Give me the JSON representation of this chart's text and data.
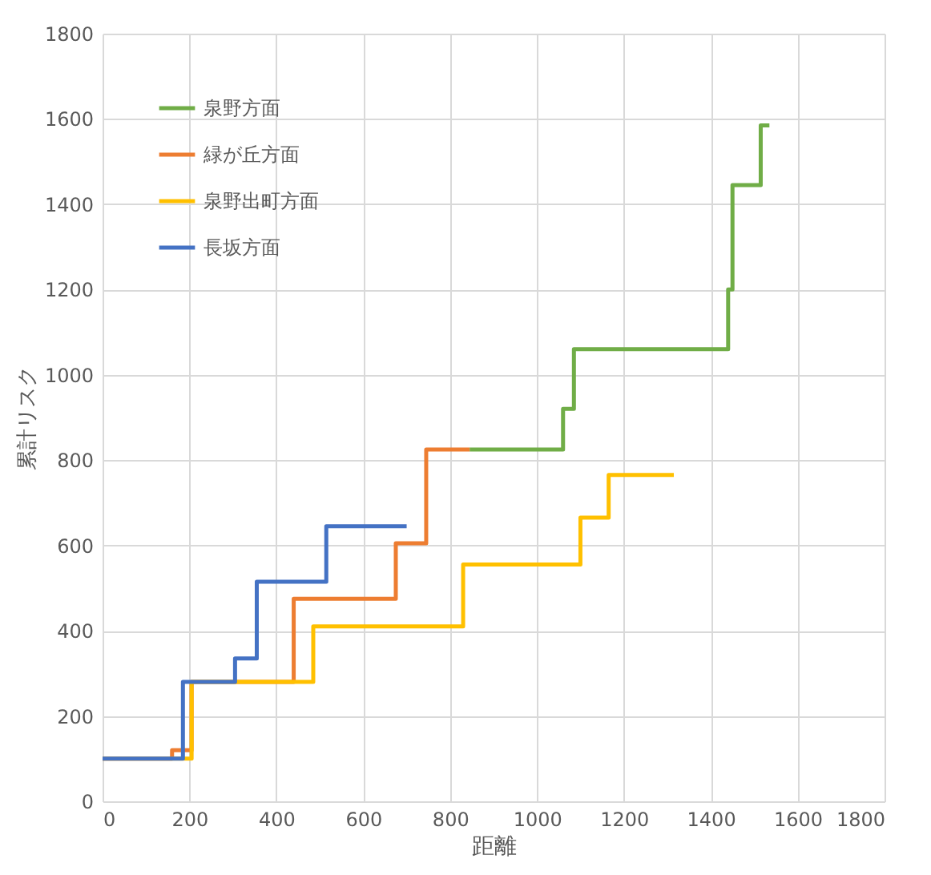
{
  "chart_data": {
    "type": "step",
    "xlabel": "距離",
    "ylabel": "累計リスク",
    "xlim": [
      0,
      1800
    ],
    "xticks": [
      0,
      200,
      400,
      600,
      800,
      1000,
      1200,
      1400,
      1600,
      1800
    ],
    "ylim": [
      0,
      1800
    ],
    "yticks": [
      0,
      200,
      400,
      600,
      800,
      1000,
      1200,
      1400,
      1600,
      1800
    ],
    "grid": true,
    "legend": "top left",
    "series": [
      {
        "name": "泉野方面",
        "color": "#70ad47",
        "x": [
          845,
          1060,
          1085,
          1440,
          1450,
          1515,
          1535
        ],
        "values": [
          825,
          920,
          1060,
          1200,
          1445,
          1585,
          1585
        ]
      },
      {
        "name": "緑が丘方面",
        "color": "#ed7d31",
        "x": [
          0,
          160,
          205,
          440,
          675,
          745,
          845
        ],
        "values": [
          100,
          120,
          280,
          475,
          605,
          825,
          825
        ]
      },
      {
        "name": "泉野出町方面",
        "color": "#ffc000",
        "x": [
          0,
          205,
          485,
          830,
          1100,
          1165,
          1315
        ],
        "values": [
          100,
          280,
          410,
          555,
          665,
          765,
          765
        ]
      },
      {
        "name": "長坂方面",
        "color": "#4472c4",
        "x": [
          0,
          185,
          305,
          355,
          515,
          700
        ],
        "values": [
          100,
          280,
          335,
          515,
          645,
          645
        ]
      }
    ]
  }
}
